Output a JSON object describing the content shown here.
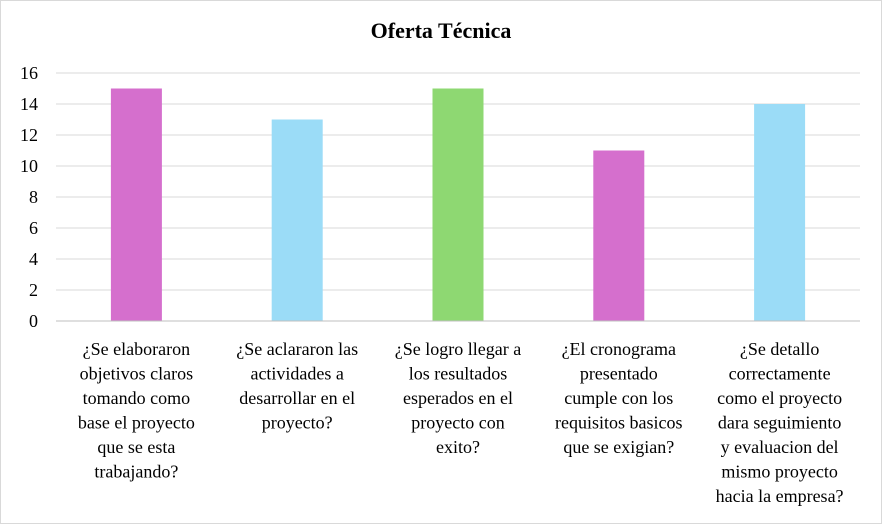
{
  "chart_data": {
    "type": "bar",
    "title": "Oferta Técnica",
    "xlabel": "",
    "ylabel": "",
    "ylim": [
      0,
      16
    ],
    "yticks": [
      "0",
      "2",
      "4",
      "6",
      "8",
      "10",
      "12",
      "14",
      "16"
    ],
    "grid": true,
    "legend": "none",
    "categories": [
      [
        "¿Se elaboraron",
        "objetivos claros",
        "tomando como",
        "base el proyecto",
        "que se esta",
        "trabajando?"
      ],
      [
        "¿Se aclararon las",
        "actividades a",
        "desarrollar en el",
        "proyecto?"
      ],
      [
        "¿Se logro llegar a",
        "los resultados",
        "esperados en el",
        "proyecto con",
        "exito?"
      ],
      [
        "¿El cronograma",
        "presentado",
        "cumple con los",
        "requisitos basicos",
        "que se exigian?"
      ],
      [
        "¿Se detallo",
        "correctamente",
        "como el proyecto",
        "dara seguimiento",
        "y evaluacion del",
        "mismo proyecto",
        "hacia la empresa?"
      ]
    ],
    "values": [
      15,
      13,
      15,
      11,
      14
    ],
    "colors": [
      "#d56fcd",
      "#9bdcf7",
      "#8ed872",
      "#d56fcd",
      "#9bdcf7"
    ],
    "gridline_color": "#d9d9d9"
  }
}
